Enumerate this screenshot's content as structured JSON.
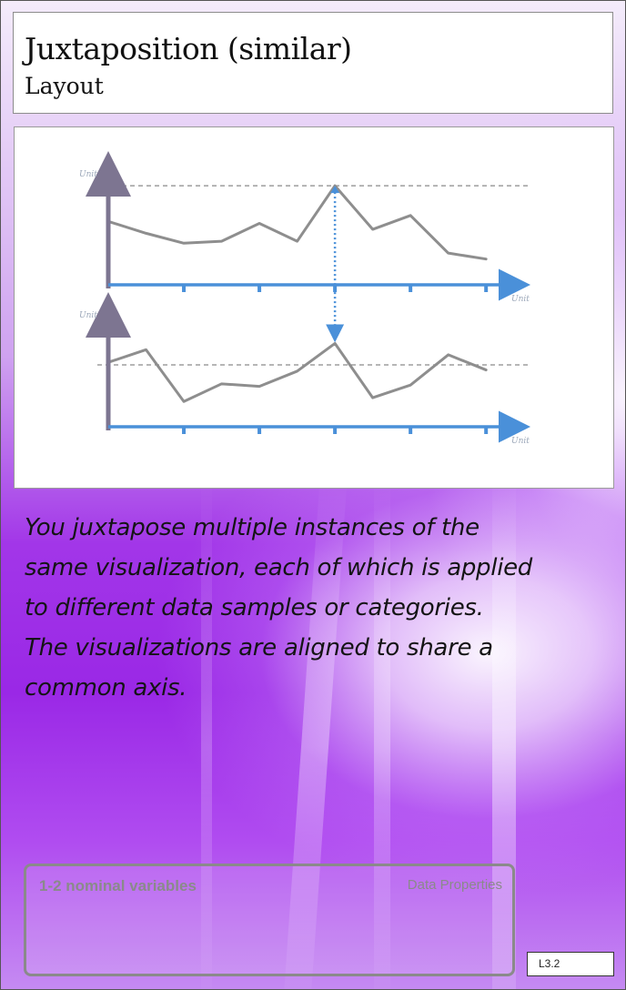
{
  "header": {
    "title": "Juxtaposition (similar)",
    "subtitle": "Layout"
  },
  "figure": {
    "unit_label": "Unit"
  },
  "chart_data": [
    {
      "type": "line",
      "title": "",
      "xlabel": "Unit",
      "ylabel": "Unit",
      "x": [
        0,
        1,
        2,
        3,
        4,
        5,
        6,
        7,
        8,
        9,
        10
      ],
      "series": [
        {
          "values": [
            3.2,
            2.6,
            2.1,
            2.2,
            3.1,
            2.2,
            5.0,
            2.8,
            3.5,
            1.6,
            1.3
          ]
        }
      ],
      "reference_line": 5.0,
      "ylim": [
        0,
        6.2
      ],
      "xlim": [
        0,
        11.2
      ],
      "grid": false,
      "highlight_x": 6
    },
    {
      "type": "line",
      "title": "",
      "xlabel": "Unit",
      "ylabel": "Unit",
      "x": [
        0,
        1,
        2,
        3,
        4,
        5,
        6,
        7,
        8,
        9,
        10
      ],
      "series": [
        {
          "values": [
            5.1,
            6.1,
            2.0,
            3.4,
            3.2,
            4.4,
            6.6,
            2.3,
            3.3,
            5.7,
            4.5
          ]
        }
      ],
      "reference_line": 4.9,
      "ylim": [
        0,
        9.8
      ],
      "xlim": [
        0,
        11.2
      ],
      "grid": false,
      "highlight_x": 6
    }
  ],
  "description": "You juxtapose multiple instances of the same visualization, each of which is applied to different data samples or categories. The visualizations are aligned to share a common axis.",
  "data_properties": {
    "value": "1-2 nominal variables",
    "label": "Data Properties"
  },
  "card_id": "L3.2",
  "colors": {
    "axis_x": "#4a90d9",
    "axis_y": "#7d7591",
    "series_line": "#8e8e8e",
    "reference_line": "#8a8a8a",
    "highlight_arrow": "#4a90d9",
    "background_purple": "#9a28e6"
  }
}
